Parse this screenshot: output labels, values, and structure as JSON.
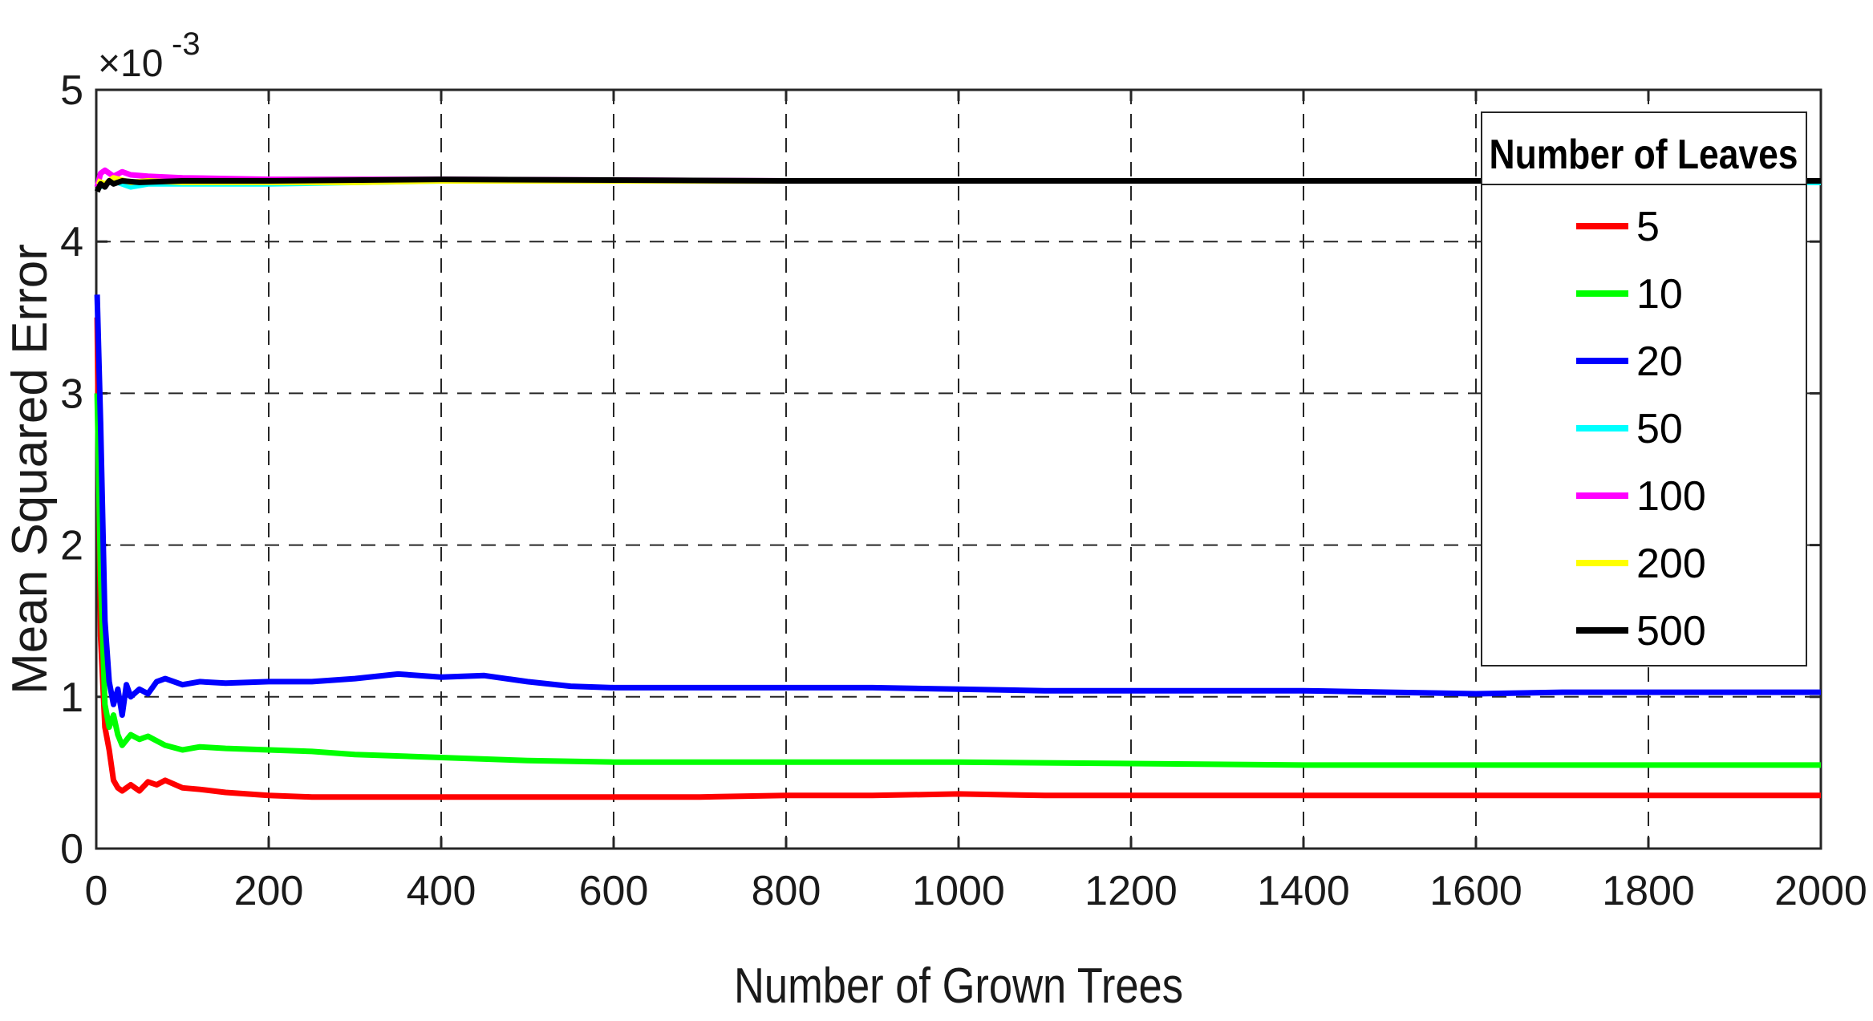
{
  "chart_data": {
    "type": "line",
    "xlabel": "Number of Grown Trees",
    "ylabel": "Mean Squared Error",
    "y_exponent_base": "×10",
    "y_exponent_power": "-3",
    "xlim": [
      0,
      2000
    ],
    "ylim": [
      0,
      5
    ],
    "xticks": [
      0,
      200,
      400,
      600,
      800,
      1000,
      1200,
      1400,
      1600,
      1800,
      2000
    ],
    "yticks": [
      0,
      1,
      2,
      3,
      4,
      5
    ],
    "grid": true,
    "legend": {
      "title": "Number of Leaves",
      "placement": "top-right"
    },
    "series": [
      {
        "name": "5",
        "color": "#ff0000",
        "points": [
          [
            1,
            3.5
          ],
          [
            5,
            1.4
          ],
          [
            10,
            0.8
          ],
          [
            15,
            0.65
          ],
          [
            20,
            0.45
          ],
          [
            25,
            0.4
          ],
          [
            30,
            0.38
          ],
          [
            40,
            0.42
          ],
          [
            50,
            0.38
          ],
          [
            60,
            0.44
          ],
          [
            70,
            0.42
          ],
          [
            80,
            0.45
          ],
          [
            100,
            0.4
          ],
          [
            120,
            0.39
          ],
          [
            150,
            0.37
          ],
          [
            200,
            0.35
          ],
          [
            250,
            0.34
          ],
          [
            300,
            0.34
          ],
          [
            400,
            0.34
          ],
          [
            500,
            0.34
          ],
          [
            600,
            0.34
          ],
          [
            700,
            0.34
          ],
          [
            800,
            0.35
          ],
          [
            900,
            0.35
          ],
          [
            1000,
            0.36
          ],
          [
            1100,
            0.35
          ],
          [
            1200,
            0.35
          ],
          [
            1400,
            0.35
          ],
          [
            1600,
            0.35
          ],
          [
            1800,
            0.35
          ],
          [
            2000,
            0.35
          ]
        ]
      },
      {
        "name": "10",
        "color": "#00ff00",
        "points": [
          [
            1,
            3.0
          ],
          [
            5,
            1.8
          ],
          [
            10,
            0.95
          ],
          [
            15,
            0.8
          ],
          [
            20,
            0.88
          ],
          [
            25,
            0.75
          ],
          [
            30,
            0.68
          ],
          [
            40,
            0.75
          ],
          [
            50,
            0.72
          ],
          [
            60,
            0.74
          ],
          [
            80,
            0.68
          ],
          [
            100,
            0.65
          ],
          [
            120,
            0.67
          ],
          [
            150,
            0.66
          ],
          [
            200,
            0.65
          ],
          [
            250,
            0.64
          ],
          [
            300,
            0.62
          ],
          [
            400,
            0.6
          ],
          [
            500,
            0.58
          ],
          [
            600,
            0.57
          ],
          [
            700,
            0.57
          ],
          [
            800,
            0.57
          ],
          [
            900,
            0.57
          ],
          [
            1000,
            0.57
          ],
          [
            1200,
            0.56
          ],
          [
            1400,
            0.55
          ],
          [
            1600,
            0.55
          ],
          [
            1800,
            0.55
          ],
          [
            2000,
            0.55
          ]
        ]
      },
      {
        "name": "20",
        "color": "#0000ff",
        "points": [
          [
            1,
            3.65
          ],
          [
            5,
            2.8
          ],
          [
            10,
            1.5
          ],
          [
            15,
            1.1
          ],
          [
            20,
            0.95
          ],
          [
            25,
            1.05
          ],
          [
            30,
            0.88
          ],
          [
            35,
            1.08
          ],
          [
            40,
            1.0
          ],
          [
            50,
            1.05
          ],
          [
            60,
            1.02
          ],
          [
            70,
            1.1
          ],
          [
            80,
            1.12
          ],
          [
            100,
            1.08
          ],
          [
            120,
            1.1
          ],
          [
            150,
            1.09
          ],
          [
            200,
            1.1
          ],
          [
            250,
            1.1
          ],
          [
            300,
            1.12
          ],
          [
            350,
            1.15
          ],
          [
            400,
            1.13
          ],
          [
            450,
            1.14
          ],
          [
            500,
            1.1
          ],
          [
            550,
            1.07
          ],
          [
            600,
            1.06
          ],
          [
            700,
            1.06
          ],
          [
            800,
            1.06
          ],
          [
            900,
            1.06
          ],
          [
            1000,
            1.05
          ],
          [
            1100,
            1.04
          ],
          [
            1200,
            1.04
          ],
          [
            1300,
            1.04
          ],
          [
            1400,
            1.04
          ],
          [
            1500,
            1.03
          ],
          [
            1600,
            1.02
          ],
          [
            1700,
            1.03
          ],
          [
            1800,
            1.03
          ],
          [
            1900,
            1.03
          ],
          [
            2000,
            1.03
          ]
        ]
      },
      {
        "name": "50",
        "color": "#00ffff",
        "points": [
          [
            1,
            4.35
          ],
          [
            10,
            4.38
          ],
          [
            20,
            4.4
          ],
          [
            40,
            4.36
          ],
          [
            60,
            4.38
          ],
          [
            100,
            4.38
          ],
          [
            200,
            4.38
          ],
          [
            400,
            4.4
          ],
          [
            800,
            4.4
          ],
          [
            1200,
            4.4
          ],
          [
            1600,
            4.4
          ],
          [
            2000,
            4.39
          ]
        ]
      },
      {
        "name": "100",
        "color": "#ff00ff",
        "points": [
          [
            1,
            4.36
          ],
          [
            5,
            4.45
          ],
          [
            10,
            4.47
          ],
          [
            20,
            4.43
          ],
          [
            30,
            4.46
          ],
          [
            40,
            4.44
          ],
          [
            60,
            4.43
          ],
          [
            100,
            4.42
          ],
          [
            200,
            4.41
          ],
          [
            400,
            4.41
          ],
          [
            800,
            4.4
          ],
          [
            1200,
            4.4
          ],
          [
            1600,
            4.4
          ],
          [
            2000,
            4.4
          ]
        ]
      },
      {
        "name": "200",
        "color": "#ffff00",
        "points": [
          [
            1,
            4.4
          ],
          [
            10,
            4.38
          ],
          [
            20,
            4.42
          ],
          [
            40,
            4.39
          ],
          [
            60,
            4.4
          ],
          [
            100,
            4.39
          ],
          [
            200,
            4.39
          ],
          [
            300,
            4.39
          ],
          [
            400,
            4.4
          ],
          [
            800,
            4.4
          ],
          [
            1200,
            4.4
          ],
          [
            1600,
            4.4
          ],
          [
            2000,
            4.4
          ]
        ]
      },
      {
        "name": "500",
        "color": "#000000",
        "points": [
          [
            1,
            4.33
          ],
          [
            5,
            4.38
          ],
          [
            10,
            4.36
          ],
          [
            15,
            4.4
          ],
          [
            20,
            4.38
          ],
          [
            30,
            4.4
          ],
          [
            50,
            4.39
          ],
          [
            100,
            4.4
          ],
          [
            200,
            4.4
          ],
          [
            400,
            4.41
          ],
          [
            800,
            4.4
          ],
          [
            1200,
            4.4
          ],
          [
            1600,
            4.4
          ],
          [
            2000,
            4.4
          ]
        ]
      }
    ]
  }
}
